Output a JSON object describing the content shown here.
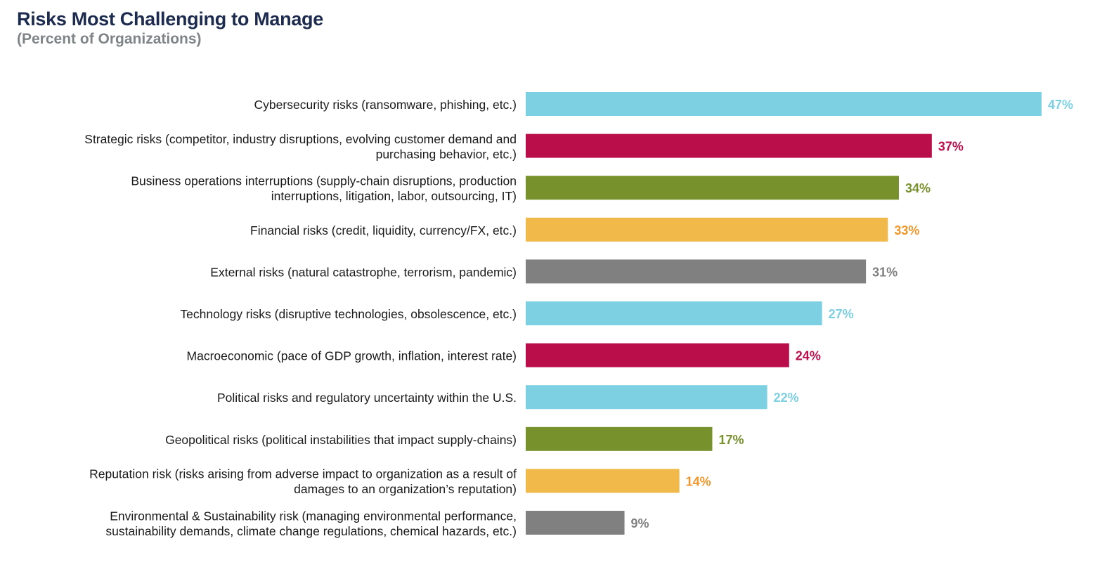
{
  "chart_data": {
    "type": "bar",
    "orientation": "horizontal",
    "title": "Risks Most Challenging to Manage",
    "subtitle": "(Percent of Organizations)",
    "categories": [
      [
        "Cybersecurity risks (ransomware, phishing, etc.)"
      ],
      [
        "Strategic risks (competitor, industry disruptions, evolving customer demand and",
        "purchasing behavior, etc.)"
      ],
      [
        "Business operations interruptions (supply-chain disruptions, production",
        "interruptions, litigation, labor, outsourcing, IT)"
      ],
      [
        "Financial risks (credit, liquidity, currency/FX, etc.)"
      ],
      [
        "External risks (natural catastrophe, terrorism, pandemic)"
      ],
      [
        "Technology risks (disruptive technologies, obsolescence, etc.)"
      ],
      [
        "Macroeconomic (pace of GDP growth, inflation, interest rate)"
      ],
      [
        "Political risks and regulatory uncertainty within the U.S."
      ],
      [
        "Geopolitical risks (political instabilities that impact supply-chains)"
      ],
      [
        "Reputation risk (risks arising from adverse impact to organization as a result of",
        "damages to an organization’s reputation)"
      ],
      [
        "Environmental & Sustainability risk (managing environmental performance,",
        "sustainability demands, climate change regulations, chemical hazards, etc.)"
      ]
    ],
    "values": [
      47,
      37,
      34,
      33,
      31,
      27,
      24,
      22,
      17,
      14,
      9
    ],
    "value_labels": [
      "47%",
      "37%",
      "34%",
      "33%",
      "31%",
      "27%",
      "24%",
      "22%",
      "17%",
      "14%",
      "9%"
    ],
    "bar_colors": [
      "#7dcfe2",
      "#b90e4a",
      "#77922d",
      "#f1b94a",
      "#808080",
      "#7dcfe2",
      "#b90e4a",
      "#7dcfe2",
      "#77922d",
      "#f1b94a",
      "#808080"
    ],
    "label_colors": [
      "#7dcfe2",
      "#b90e4a",
      "#77922d",
      "#f0962c",
      "#808080",
      "#7dcfe2",
      "#b90e4a",
      "#7dcfe2",
      "#77922d",
      "#f0962c",
      "#808080"
    ],
    "xlim": [
      0,
      47
    ],
    "grid": false,
    "legend": "none"
  },
  "colors": {
    "title": "#1d2b4f",
    "subtitle": "#7f8486",
    "category_text": "#1a1a1a"
  }
}
